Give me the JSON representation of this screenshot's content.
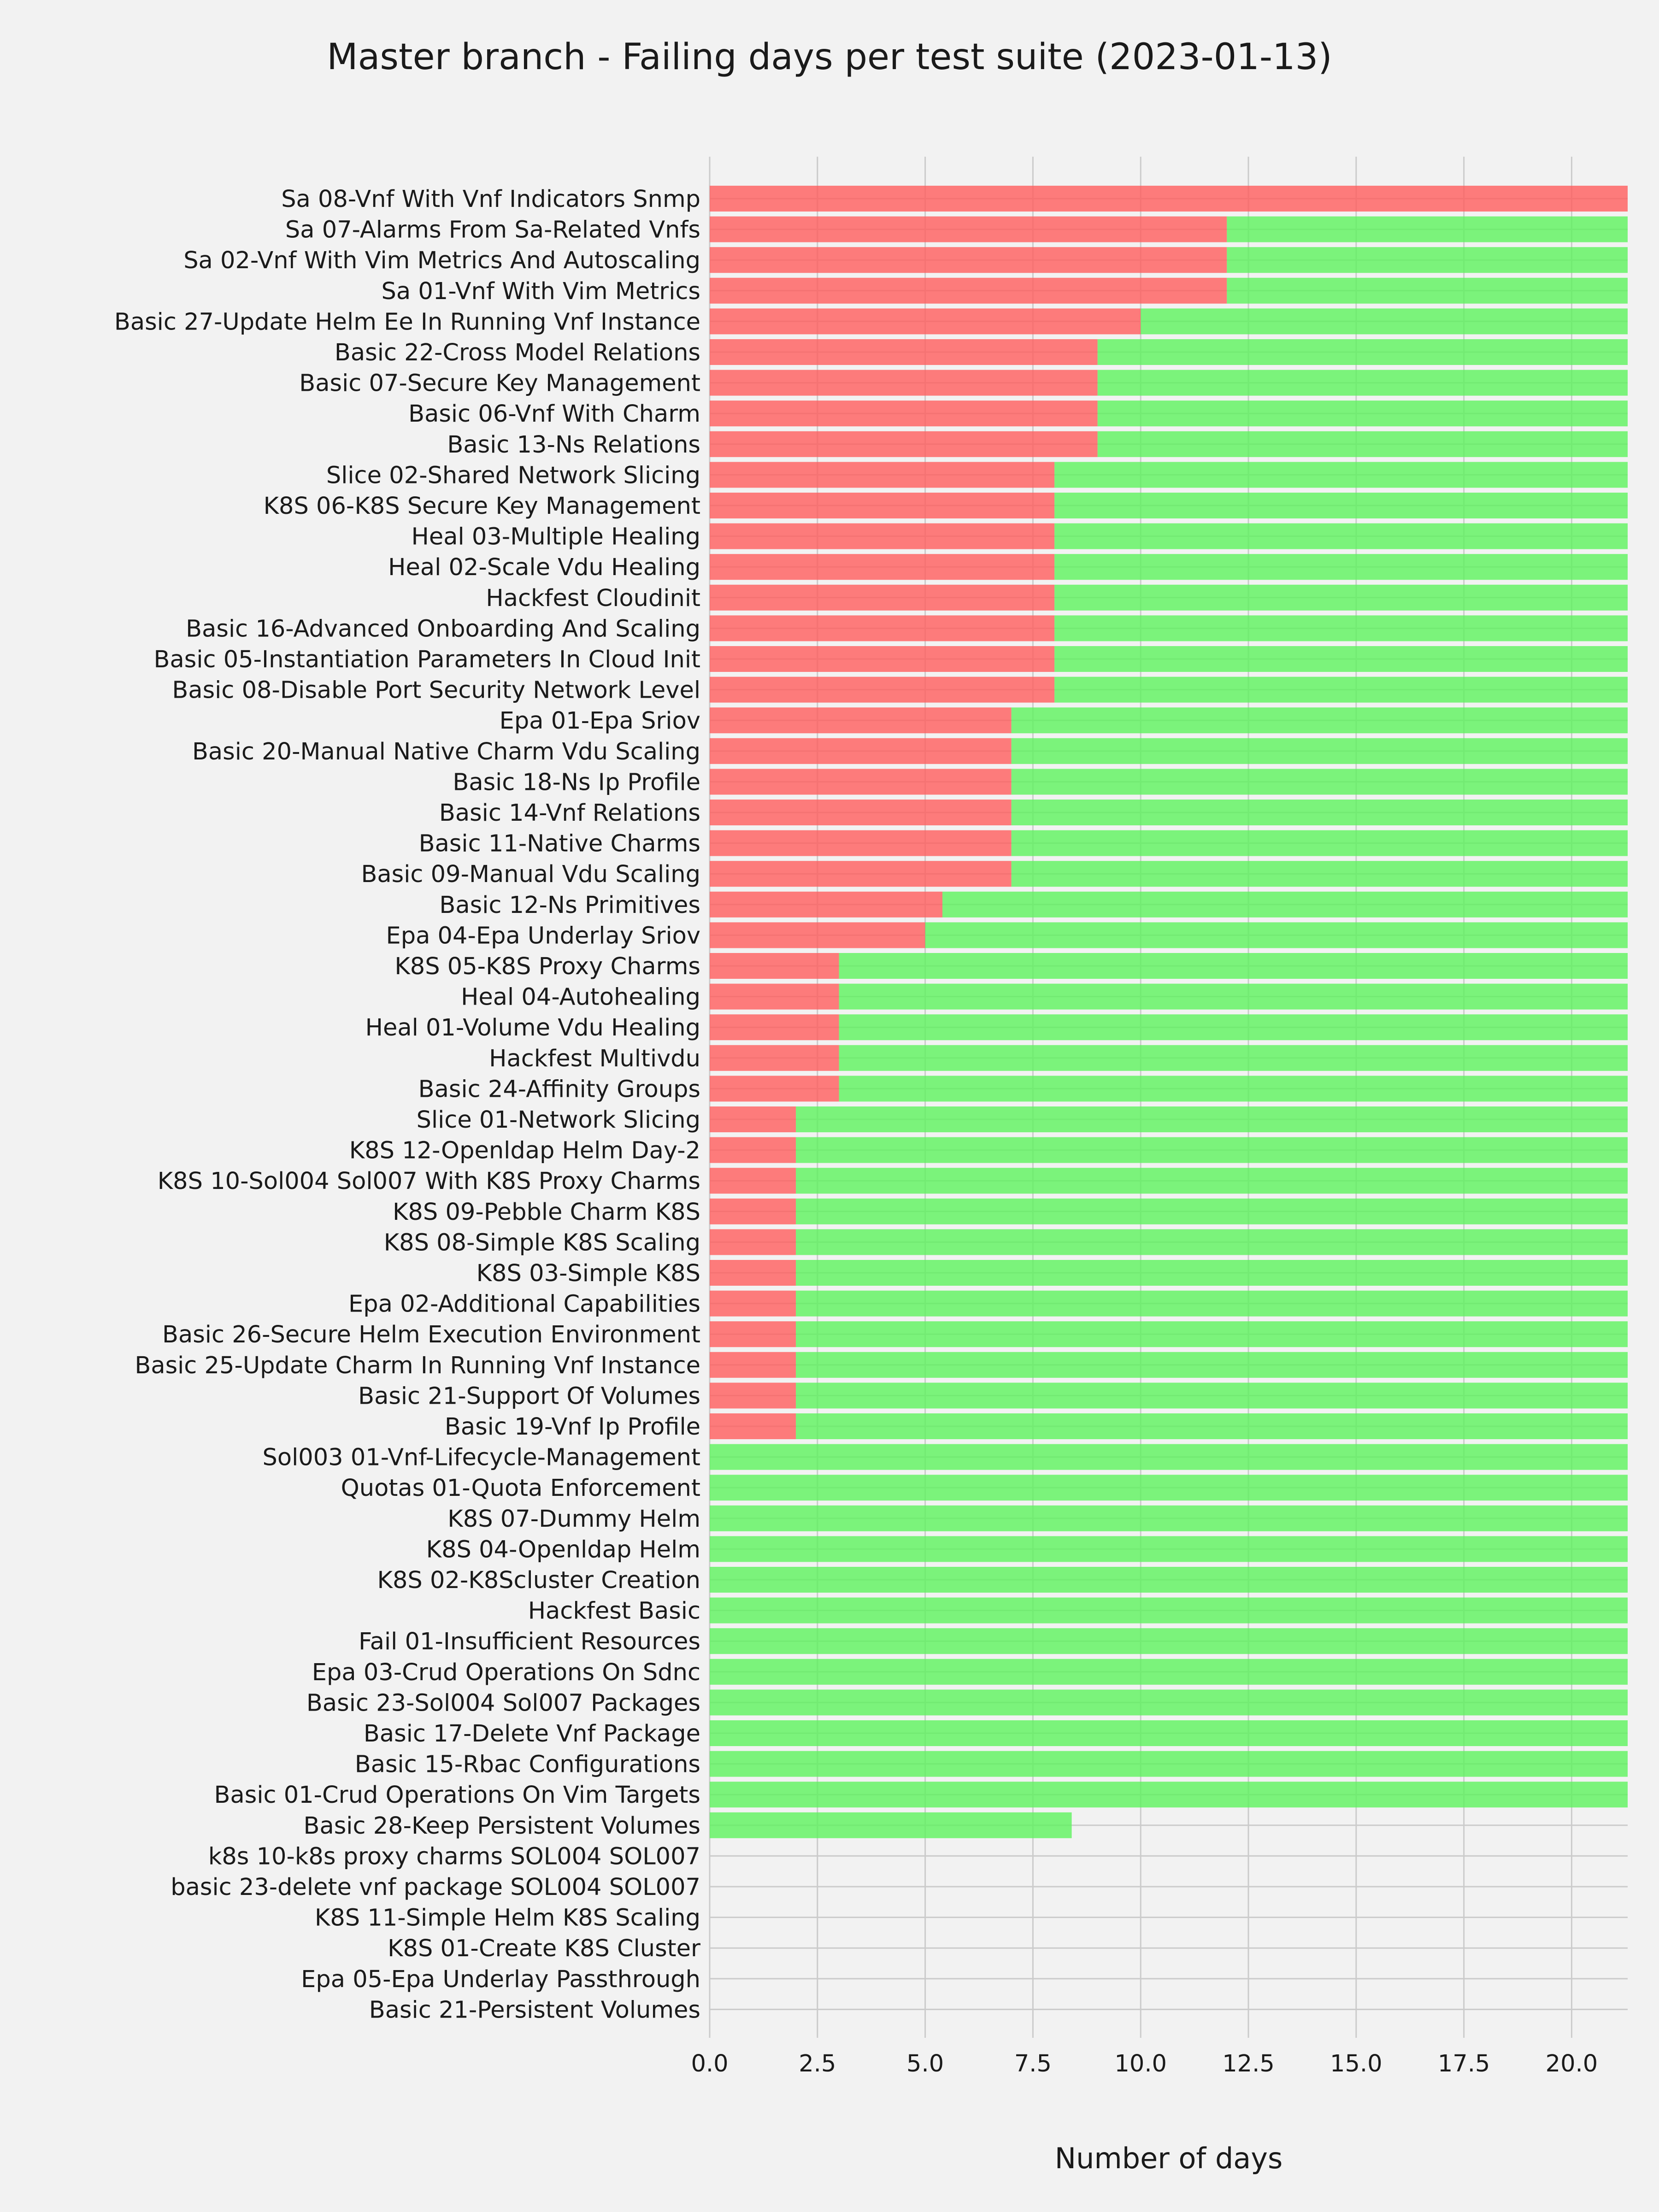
{
  "chart_data": {
    "type": "bar",
    "orientation": "horizontal",
    "stacked": true,
    "title": "Master branch - Failing days per test suite (2023-01-13)",
    "xlabel": "Number of days",
    "ylabel": "",
    "xlim": [
      0,
      21.3
    ],
    "xticks": [
      "0.0",
      "2.5",
      "5.0",
      "7.5",
      "10.0",
      "12.5",
      "15.0",
      "17.5",
      "20.0"
    ],
    "grid": true,
    "categories": [
      "Sa 08-Vnf With Vnf Indicators Snmp",
      "Sa 07-Alarms From Sa-Related Vnfs",
      "Sa 02-Vnf With Vim Metrics And Autoscaling",
      "Sa 01-Vnf With Vim Metrics",
      "Basic 27-Update Helm Ee In Running Vnf Instance",
      "Basic 22-Cross Model Relations",
      "Basic 07-Secure Key Management",
      "Basic 06-Vnf With Charm",
      "Basic 13-Ns Relations",
      "Slice 02-Shared Network Slicing",
      "K8S 06-K8S Secure Key Management",
      "Heal 03-Multiple Healing",
      "Heal 02-Scale Vdu Healing",
      "Hackfest Cloudinit",
      "Basic 16-Advanced Onboarding And Scaling",
      "Basic 05-Instantiation Parameters In Cloud Init",
      "Basic 08-Disable Port Security Network Level",
      "Epa 01-Epa Sriov",
      "Basic 20-Manual Native Charm Vdu Scaling",
      "Basic 18-Ns Ip Profile",
      "Basic 14-Vnf Relations",
      "Basic 11-Native Charms",
      "Basic 09-Manual Vdu Scaling",
      "Basic 12-Ns Primitives",
      "Epa 04-Epa Underlay Sriov",
      "K8S 05-K8S Proxy Charms",
      "Heal 04-Autohealing",
      "Heal 01-Volume Vdu Healing",
      "Hackfest Multivdu",
      "Basic 24-Affinity Groups",
      "Slice 01-Network Slicing",
      "K8S 12-Openldap Helm Day-2",
      "K8S 10-Sol004 Sol007 With K8S Proxy Charms",
      "K8S 09-Pebble Charm K8S",
      "K8S 08-Simple K8S Scaling",
      "K8S 03-Simple K8S",
      "Epa 02-Additional Capabilities",
      "Basic 26-Secure Helm Execution Environment",
      "Basic 25-Update Charm In Running Vnf Instance",
      "Basic 21-Support Of Volumes",
      "Basic 19-Vnf Ip Profile",
      "Sol003 01-Vnf-Lifecycle-Management",
      "Quotas 01-Quota Enforcement",
      "K8S 07-Dummy Helm",
      "K8S 04-Openldap Helm",
      "K8S 02-K8Scluster Creation",
      "Hackfest Basic",
      "Fail 01-Insufficient Resources",
      "Epa 03-Crud Operations On Sdnc",
      "Basic 23-Sol004 Sol007 Packages",
      "Basic 17-Delete Vnf Package",
      "Basic 15-Rbac Configurations",
      "Basic 01-Crud Operations On Vim Targets",
      "Basic 28-Keep Persistent Volumes",
      "k8s 10-k8s proxy charms SOL004 SOL007",
      "basic 23-delete vnf package SOL004 SOL007",
      "K8S 11-Simple Helm K8S Scaling",
      "K8S 01-Create K8S Cluster",
      "Epa 05-Epa Underlay Passthrough",
      "Basic 21-Persistent Volumes"
    ],
    "series": [
      {
        "color": "#ff5c5c",
        "values": [
          21.3,
          12,
          12,
          12,
          10,
          9,
          9,
          9,
          9,
          8,
          8,
          8,
          8,
          8,
          8,
          8,
          8,
          7,
          7,
          7,
          7,
          7,
          7,
          5.4,
          5,
          3,
          3,
          3,
          3,
          3,
          2,
          2,
          2,
          2,
          2,
          2,
          2,
          2,
          2,
          2,
          2,
          0,
          0,
          0,
          0,
          0,
          0,
          0,
          0,
          0,
          0,
          0,
          0,
          0,
          0,
          0,
          0,
          0,
          0,
          0
        ]
      },
      {
        "color": "#5cf25c",
        "values": [
          0,
          9.3,
          9.3,
          9.3,
          11.3,
          12.3,
          12.3,
          12.3,
          12.3,
          13.3,
          13.3,
          13.3,
          13.3,
          13.3,
          13.3,
          13.3,
          13.3,
          14.3,
          14.3,
          14.3,
          14.3,
          14.3,
          14.3,
          15.9,
          16.3,
          18.3,
          18.3,
          18.3,
          18.3,
          18.3,
          19.3,
          19.3,
          19.3,
          19.3,
          19.3,
          19.3,
          19.3,
          19.3,
          19.3,
          19.3,
          19.3,
          21.3,
          21.3,
          21.3,
          21.3,
          21.3,
          21.3,
          21.3,
          21.3,
          21.3,
          21.3,
          21.3,
          21.3,
          8.4,
          0,
          0,
          0,
          0,
          0,
          0
        ]
      }
    ]
  }
}
